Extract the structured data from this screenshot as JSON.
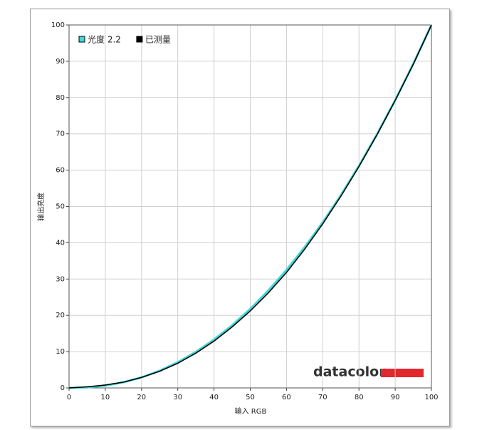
{
  "chart_data": {
    "type": "line",
    "x_label": "输入 RGB",
    "y_label": "输出亮度",
    "x": [
      0,
      5,
      10,
      15,
      20,
      25,
      30,
      35,
      40,
      45,
      50,
      55,
      60,
      65,
      70,
      75,
      80,
      85,
      90,
      95,
      100
    ],
    "series": [
      {
        "name": "光度 2.2",
        "color": "#3fd8d8",
        "values": [
          0,
          0.14,
          0.63,
          1.54,
          2.9,
          4.74,
          7.07,
          9.93,
          13.32,
          17.26,
          21.76,
          26.84,
          32.5,
          38.76,
          45.63,
          53.11,
          61.21,
          69.94,
          79.31,
          89.33,
          100
        ]
      },
      {
        "name": "已测量",
        "color": "#000000",
        "values": [
          0,
          0.3,
          0.8,
          1.6,
          2.9,
          4.6,
          6.8,
          9.6,
          12.9,
          16.8,
          21.2,
          26.2,
          31.8,
          38.2,
          45.2,
          52.8,
          61,
          69.8,
          79.2,
          89.2,
          100
        ]
      }
    ],
    "xlim": [
      0,
      100
    ],
    "ylim": [
      0,
      100
    ],
    "xticks": [
      0,
      10,
      20,
      30,
      40,
      50,
      60,
      70,
      80,
      90,
      100
    ],
    "yticks": [
      0,
      10,
      20,
      30,
      40,
      50,
      60,
      70,
      80,
      90,
      100
    ],
    "grid": true,
    "legend": "top-left",
    "logo": "datacolor"
  }
}
